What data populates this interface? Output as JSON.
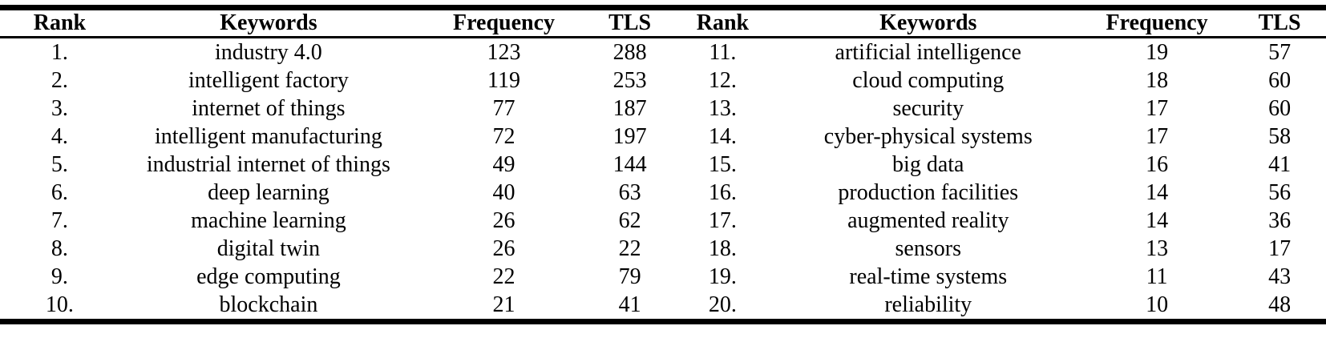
{
  "colors": {
    "text": "#000000",
    "background": "#ffffff",
    "rule": "#000000"
  },
  "table": {
    "columns": [
      "Rank",
      "Keywords",
      "Frequency",
      "TLS",
      "Rank",
      "Keywords",
      "Frequency",
      "TLS"
    ],
    "rows": [
      [
        "1.",
        "industry 4.0",
        "123",
        "288",
        "11.",
        "artificial intelligence",
        "19",
        "57"
      ],
      [
        "2.",
        "intelligent factory",
        "119",
        "253",
        "12.",
        "cloud computing",
        "18",
        "60"
      ],
      [
        "3.",
        "internet of things",
        "77",
        "187",
        "13.",
        "security",
        "17",
        "60"
      ],
      [
        "4.",
        "intelligent manufacturing",
        "72",
        "197",
        "14.",
        "cyber-physical systems",
        "17",
        "58"
      ],
      [
        "5.",
        "industrial internet of things",
        "49",
        "144",
        "15.",
        "big data",
        "16",
        "41"
      ],
      [
        "6.",
        "deep learning",
        "40",
        "63",
        "16.",
        "production facilities",
        "14",
        "56"
      ],
      [
        "7.",
        "machine learning",
        "26",
        "62",
        "17.",
        "augmented reality",
        "14",
        "36"
      ],
      [
        "8.",
        "digital twin",
        "26",
        "22",
        "18.",
        "sensors",
        "13",
        "17"
      ],
      [
        "9.",
        "edge computing",
        "22",
        "79",
        "19.",
        "real-time systems",
        "11",
        "43"
      ],
      [
        "10.",
        "blockchain",
        "21",
        "41",
        "20.",
        "reliability",
        "10",
        "48"
      ]
    ]
  }
}
